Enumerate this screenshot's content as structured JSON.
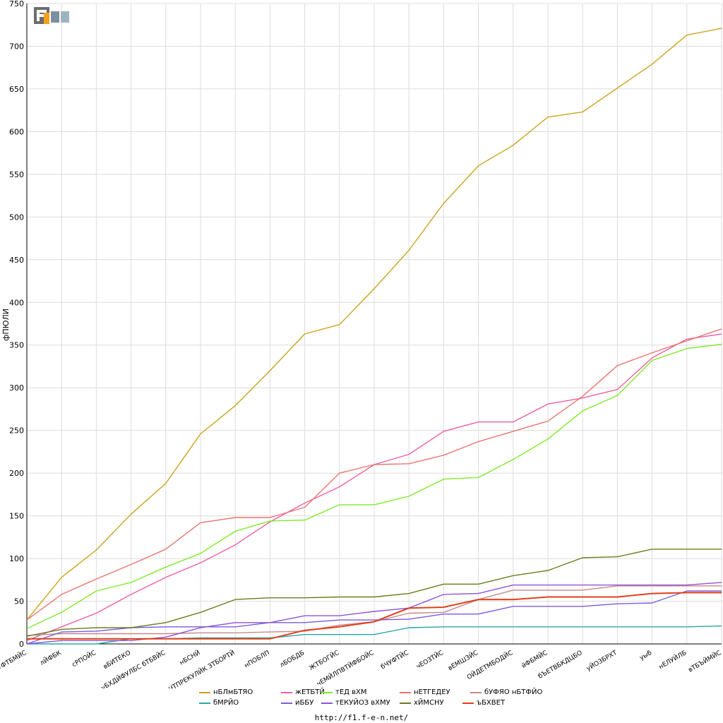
{
  "chart_data": {
    "type": "line",
    "title": "",
    "xlabel": "",
    "ylabel": "фПЮЛИ",
    "ylim": [
      0,
      750
    ],
    "yticks": [
      0,
      50,
      100,
      150,
      200,
      250,
      300,
      350,
      400,
      450,
      500,
      550,
      600,
      650,
      700,
      750
    ],
    "grid": true,
    "legend_position": "bottom",
    "categories": [
      "бУФТБМЙС",
      "лЙФБК",
      "сРПОЙС",
      "вБИТЕКО",
      "уБХДЙФУЛБС бТБВЙС",
      "нБСНЙ",
      "еЧТПРЕКУЛЙК ЗТБОРТЙ",
      "нПОБЛП",
      "лБОБДБ",
      "ЖТБОГЙС",
      "чЕМЙЛПВТЙФБОЙС",
      "бЧУФТЙС",
      "чЕОЗТЙС",
      "вЕМШЗЙС",
      "ОЙДЕТМБОДЙС",
      "йФБМЙС",
      "бЪЕТВБКДЦБО",
      "уЙОЗБРХТ",
      "уыб",
      "нЕЛУЙЛБ",
      "вТБЪЙМЙС"
    ],
    "series": [
      {
        "name": "нБЛмБТЯО",
        "color": "#c9a31a",
        "values": [
          28,
          78,
          110,
          152,
          188,
          246,
          279,
          320,
          363,
          374,
          416,
          461,
          516,
          560,
          584,
          617,
          623,
          651,
          679,
          713,
          721
        ]
      },
      {
        "name": "жЕТБТЙ",
        "color": "#ee5fa6",
        "values": [
          4,
          20,
          36,
          58,
          78,
          95,
          116,
          143,
          165,
          184,
          210,
          222,
          249,
          260,
          260,
          281,
          288,
          298,
          335,
          357,
          363
        ]
      },
      {
        "name": "тЕД вХМ",
        "color": "#80ea28",
        "values": [
          18,
          37,
          62,
          72,
          90,
          106,
          132,
          144,
          145,
          163,
          163,
          173,
          193,
          195,
          216,
          240,
          273,
          291,
          332,
          346,
          351
        ]
      },
      {
        "name": "нЕТГЕДЕУ",
        "color": "#e87670",
        "values": [
          28,
          58,
          76,
          93,
          111,
          142,
          148,
          148,
          160,
          200,
          210,
          211,
          221,
          237,
          249,
          261,
          290,
          326,
          341,
          355,
          369
        ]
      },
      {
        "name": "бУФЯО нБТФЙО",
        "color": "#c8868c",
        "values": [
          10,
          12,
          12,
          12,
          12,
          13,
          13,
          14,
          15,
          22,
          26,
          36,
          37,
          52,
          63,
          63,
          63,
          68,
          68,
          68,
          68
        ]
      },
      {
        "name": "бМРЙО",
        "color": "#29a8a8",
        "values": [
          0,
          0,
          0,
          6,
          6,
          7,
          7,
          7,
          11,
          11,
          11,
          19,
          20,
          20,
          20,
          20,
          20,
          20,
          20,
          20,
          21
        ]
      },
      {
        "name": "иББУ",
        "color": "#7a5ce0",
        "values": [
          0,
          14,
          15,
          19,
          20,
          20,
          20,
          25,
          25,
          28,
          28,
          29,
          35,
          35,
          44,
          44,
          44,
          47,
          48,
          62,
          62
        ]
      },
      {
        "name": "тЕКУЙОЗ вХМУ",
        "color": "#8f52d6",
        "values": [
          0,
          4,
          4,
          4,
          8,
          19,
          25,
          25,
          33,
          33,
          38,
          42,
          58,
          59,
          69,
          69,
          69,
          69,
          69,
          69,
          72
        ]
      },
      {
        "name": "хЙМСНУ",
        "color": "#6b7d1b",
        "values": [
          9,
          17,
          19,
          19,
          25,
          37,
          52,
          54,
          54,
          55,
          55,
          59,
          70,
          70,
          80,
          86,
          101,
          102,
          111,
          111,
          111
        ]
      },
      {
        "name": "ъБХВЕТ",
        "color": "#e0401a",
        "values": [
          6,
          6,
          6,
          6,
          6,
          6,
          6,
          6,
          16,
          20,
          26,
          42,
          43,
          52,
          52,
          55,
          55,
          55,
          59,
          60,
          60
        ]
      }
    ]
  },
  "footer": {
    "source": "http://f1.f-e-n.net/"
  },
  "logo": {
    "label": "F1EN"
  }
}
